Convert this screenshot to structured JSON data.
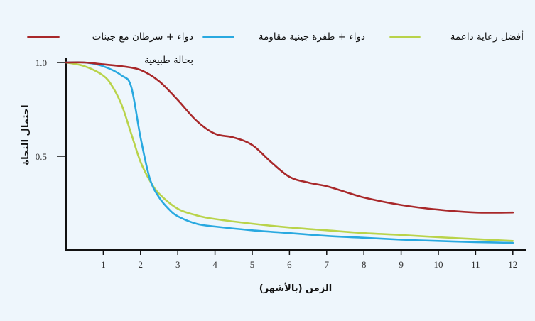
{
  "chart_data": {
    "type": "line",
    "xlabel": "الزمن (بالأشهر)",
    "ylabel": "احتمال النجاة",
    "xlim": [
      0,
      12.3
    ],
    "ylim": [
      0,
      1.02
    ],
    "x_ticks": [
      1,
      2,
      3,
      4,
      5,
      6,
      7,
      8,
      9,
      10,
      11,
      12
    ],
    "y_ticks": [
      {
        "value": 1.0,
        "label": "1.0"
      },
      {
        "value": 0.5,
        "label": "0.5"
      }
    ],
    "legend_position": "top",
    "grid": false,
    "series": [
      {
        "name": "دواء + سرطان مع جينات",
        "name_line2": "بحالة طبيعية",
        "color": "#a8282a",
        "x": [
          0,
          0.5,
          1,
          1.5,
          2,
          2.5,
          3,
          3.5,
          4,
          4.5,
          5,
          5.5,
          6,
          6.5,
          7,
          7.5,
          8,
          9,
          10,
          11,
          12
        ],
        "y": [
          1.0,
          1.0,
          0.99,
          0.98,
          0.96,
          0.9,
          0.8,
          0.69,
          0.62,
          0.6,
          0.56,
          0.47,
          0.39,
          0.36,
          0.34,
          0.31,
          0.28,
          0.24,
          0.215,
          0.2,
          0.2
        ]
      },
      {
        "name": "دواء + طفرة جينية مقاومة",
        "color": "#29a9e0",
        "x": [
          0,
          0.5,
          1,
          1.5,
          1.75,
          2,
          2.25,
          2.5,
          2.75,
          3,
          3.5,
          4,
          5,
          6,
          7,
          8,
          9,
          10,
          11,
          12
        ],
        "y": [
          1.0,
          1.0,
          0.98,
          0.93,
          0.87,
          0.6,
          0.38,
          0.28,
          0.22,
          0.18,
          0.14,
          0.125,
          0.105,
          0.09,
          0.075,
          0.065,
          0.055,
          0.048,
          0.042,
          0.038
        ]
      },
      {
        "name": "أفضل رعاية داعمة",
        "color": "#b9d34a",
        "x": [
          0,
          0.5,
          1,
          1.25,
          1.5,
          1.75,
          2,
          2.25,
          2.5,
          3,
          3.5,
          4,
          5,
          6,
          7,
          8,
          9,
          10,
          11,
          12
        ],
        "y": [
          1.0,
          0.98,
          0.93,
          0.87,
          0.77,
          0.62,
          0.47,
          0.37,
          0.3,
          0.22,
          0.185,
          0.165,
          0.14,
          0.12,
          0.105,
          0.09,
          0.08,
          0.068,
          0.058,
          0.048
        ]
      }
    ]
  }
}
